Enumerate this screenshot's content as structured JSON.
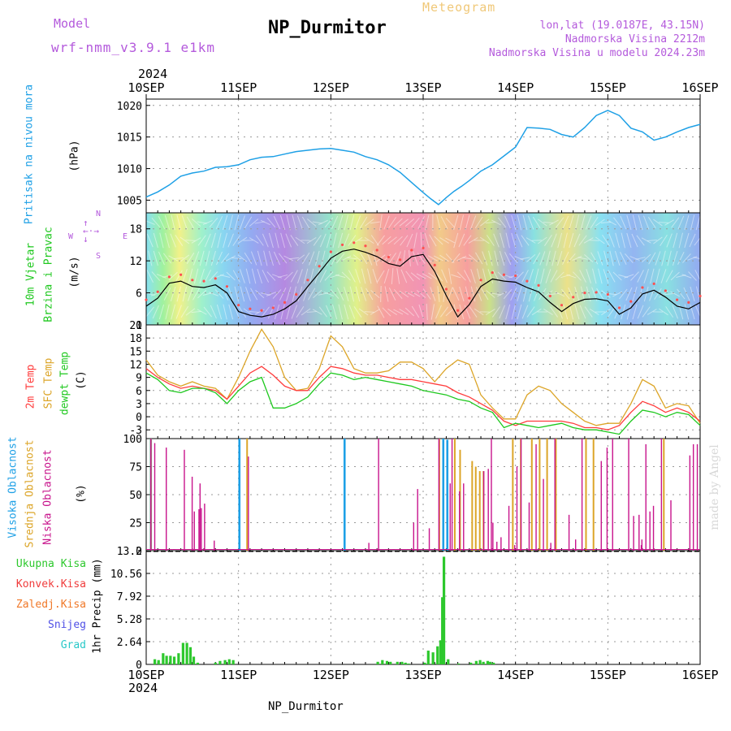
{
  "header": {
    "model_label": "Model",
    "model_name": "wrf-nmm_v3.9.1 e1km",
    "title": "NP_Durmitor",
    "product": "Meteogram",
    "lonlat": "lon,lat (19.0187E, 43.15N)",
    "altitude": "Nadmorska Visina 2212m",
    "model_altitude": "Nadmorska Visina u modelu 2024.23m",
    "year_top": "2024",
    "year_bottom": "2024",
    "footer_station": "NP_Durmitor",
    "credit": "made by Angel"
  },
  "colors": {
    "pressure": "#1ea0e6",
    "temp2m": "#ff3c3c",
    "sfc_temp": "#dca528",
    "dewpoint": "#1ec81e",
    "low_cloud": "#c8148c",
    "mid_cloud": "#dca528",
    "high_cloud": "#1ea0e6",
    "precip": "#2dc82d",
    "title_purple": "#b45adc",
    "product_orange": "#f0c878"
  },
  "days": [
    "10SEP",
    "11SEP",
    "12SEP",
    "13SEP",
    "14SEP",
    "15SEP",
    "16SEP"
  ],
  "panels": {
    "pressure": {
      "label_main": "Pritisak na nivou mora",
      "unit": "(hPa)"
    },
    "wind": {
      "label_a": "10m Vjetar",
      "label_b": "Brzina i Pravac",
      "unit": "(m/s)",
      "compass": {
        "n": "N",
        "s": "S",
        "w": "W",
        "e": "E"
      }
    },
    "temp": {
      "label_a": "2m Temp",
      "label_b": "SFC Temp",
      "label_c": "dewpt Temp",
      "unit": "(C)"
    },
    "cloud": {
      "label_a": "Visoka Oblacnost",
      "label_b": "Srednja Oblacnost",
      "label_c": "Niska Oblacnost",
      "unit": "(%)"
    },
    "precip": {
      "label_axis": "1hr Precip (mm)",
      "legend": [
        "Ukupna Kisa",
        "Konvek.Kisa",
        "Zaledj.Kisa",
        "Snijeg",
        "Grad"
      ],
      "legend_colors": [
        "#2dc82d",
        "#f03c3c",
        "#f07828",
        "#5050e6",
        "#28c8c8"
      ]
    }
  },
  "chart_data": [
    {
      "type": "line",
      "id": "pressure",
      "ylabel": "(hPa)",
      "ylim": [
        1003,
        1021
      ],
      "yticks": [
        1005,
        1010,
        1015,
        1020
      ],
      "x": [
        0,
        3,
        6,
        9,
        12,
        15,
        18,
        21,
        24,
        27,
        30,
        33,
        36,
        39,
        42,
        45,
        48,
        51,
        54,
        57,
        60,
        63,
        66,
        69,
        72,
        74,
        76,
        78,
        80,
        82,
        84,
        87,
        90,
        93,
        96,
        99,
        102,
        105,
        108,
        111,
        114,
        117,
        120,
        123,
        126,
        129,
        132,
        135,
        138,
        141,
        144
      ],
      "series": [
        {
          "values": [
            1005.5,
            1006.3,
            1007.4,
            1008.8,
            1009.3,
            1009.6,
            1010.2,
            1010.3,
            1010.6,
            1011.4,
            1011.8,
            1011.9,
            1012.3,
            1012.7,
            1012.9,
            1013.1,
            1013.2,
            1012.9,
            1012.6,
            1011.9,
            1011.4,
            1010.6,
            1009.4,
            1007.8,
            1006.2,
            1005.2,
            1004.3,
            1005.4,
            1006.4,
            1007.2,
            1008.1,
            1009.6,
            1010.6,
            1012.0,
            1013.4,
            1016.5,
            1016.4,
            1016.2,
            1015.4,
            1015.0,
            1016.5,
            1018.4,
            1019.2,
            1018.4,
            1016.4,
            1015.8,
            1014.5,
            1015.0,
            1015.8,
            1016.5,
            1017.0
          ]
        }
      ]
    },
    {
      "type": "line",
      "id": "wind_speed",
      "ylabel": "(m/s)",
      "ylim": [
        0,
        21
      ],
      "yticks": [
        0,
        6,
        12,
        18
      ],
      "x": [
        0,
        3,
        6,
        9,
        12,
        15,
        18,
        21,
        24,
        27,
        30,
        33,
        36,
        39,
        42,
        45,
        48,
        51,
        54,
        57,
        60,
        63,
        66,
        69,
        72,
        75,
        78,
        81,
        84,
        87,
        90,
        93,
        96,
        99,
        102,
        105,
        108,
        111,
        114,
        117,
        120,
        123,
        126,
        129,
        132,
        135,
        138,
        141,
        144
      ],
      "series": [
        {
          "values": [
            3.5,
            5.0,
            7.8,
            8.2,
            7.2,
            7.0,
            7.5,
            6.0,
            2.5,
            1.8,
            1.5,
            2.0,
            3.0,
            4.5,
            7.2,
            9.8,
            12.5,
            13.8,
            14.2,
            13.6,
            12.8,
            11.5,
            11.0,
            12.8,
            13.2,
            10.0,
            5.5,
            1.5,
            3.8,
            7.2,
            8.6,
            8.2,
            8.0,
            7.0,
            6.2,
            4.2,
            2.5,
            4.0,
            4.8,
            4.9,
            4.5,
            2.0,
            3.2,
            5.8,
            6.5,
            5.2,
            3.5,
            3.0,
            4.2
          ]
        }
      ]
    },
    {
      "type": "line",
      "id": "temperature",
      "ylabel": "(C)",
      "ylim": [
        -5,
        21
      ],
      "yticks": [
        -3,
        0,
        3,
        6,
        9,
        12,
        15,
        18,
        21
      ],
      "x": [
        0,
        3,
        6,
        9,
        12,
        15,
        18,
        21,
        24,
        27,
        30,
        33,
        36,
        39,
        42,
        45,
        48,
        51,
        54,
        57,
        60,
        63,
        66,
        69,
        72,
        75,
        78,
        81,
        84,
        87,
        90,
        93,
        96,
        99,
        102,
        105,
        108,
        111,
        114,
        117,
        120,
        123,
        126,
        129,
        132,
        135,
        138,
        141,
        144
      ],
      "series": [
        {
          "name": "2m Temp",
          "values": [
            11.0,
            9.0,
            7.5,
            6.5,
            7.0,
            6.5,
            6.0,
            4.0,
            7.0,
            10.0,
            11.5,
            9.5,
            7.0,
            6.0,
            6.0,
            9.0,
            11.5,
            11.0,
            10.0,
            9.5,
            9.5,
            9.0,
            8.5,
            8.5,
            8.0,
            7.5,
            7.0,
            5.5,
            4.5,
            3.0,
            1.5,
            -1.0,
            -2.0,
            -1.0,
            -1.0,
            -1.0,
            -1.0,
            -1.5,
            -2.5,
            -2.5,
            -3.0,
            -2.0,
            1.0,
            3.5,
            2.5,
            1.0,
            2.0,
            1.0,
            -1.0
          ]
        },
        {
          "name": "SFC Temp",
          "values": [
            13.0,
            9.5,
            8.0,
            7.0,
            8.0,
            7.0,
            6.5,
            4.0,
            9.0,
            15.0,
            20.0,
            16.0,
            9.0,
            6.0,
            6.5,
            11.0,
            18.5,
            16.0,
            11.0,
            10.0,
            10.0,
            10.5,
            12.5,
            12.5,
            11.0,
            8.0,
            11.0,
            13.0,
            12.0,
            5.0,
            2.0,
            -0.5,
            -0.5,
            5.0,
            7.0,
            6.0,
            3.0,
            1.0,
            -1.0,
            -2.0,
            -1.5,
            -1.5,
            3.0,
            8.5,
            7.0,
            2.0,
            3.0,
            2.5,
            -1.5
          ]
        },
        {
          "name": "dewpt Temp",
          "values": [
            10.0,
            8.5,
            6.0,
            5.5,
            6.5,
            6.5,
            5.5,
            3.0,
            6.0,
            8.0,
            9.0,
            2.0,
            2.0,
            3.0,
            4.5,
            7.5,
            10.0,
            9.5,
            8.5,
            9.0,
            8.5,
            8.0,
            7.5,
            7.0,
            6.0,
            5.5,
            5.0,
            4.0,
            3.5,
            2.0,
            1.0,
            -2.5,
            -1.5,
            -2.0,
            -2.5,
            -2.0,
            -1.5,
            -2.5,
            -3.0,
            -3.0,
            -3.5,
            -4.0,
            -1.0,
            1.5,
            1.0,
            0.0,
            1.0,
            0.5,
            -2.0
          ]
        }
      ]
    },
    {
      "type": "bar",
      "id": "cloud",
      "ylabel": "(%)",
      "ylim": [
        0,
        100
      ],
      "yticks": [
        0,
        25,
        50,
        75,
        100
      ],
      "series": [
        {
          "name": "Visoka Oblacnost",
          "segments": [
            [
              1,
              22,
              100
            ],
            [
              24,
              23,
              100
            ],
            [
              51,
              57,
              100
            ],
            [
              77,
              23,
              100
            ],
            [
              78,
              28,
              99
            ]
          ]
        },
        {
          "name": "Srednja Oblacnost",
          "segments": [
            [
              1,
              22,
              100
            ],
            [
              26,
              23,
              100
            ],
            [
              76,
              20,
              100
            ],
            [
              80,
              22,
              100
            ],
            [
              81,
              60,
              90
            ],
            [
              84,
              74,
              80
            ],
            [
              85,
              67,
              75
            ],
            [
              86,
              72,
              71
            ],
            [
              87,
              68,
              71
            ],
            [
              95,
              30,
              100
            ],
            [
              97,
              38,
              100
            ],
            [
              100,
              25,
              100
            ],
            [
              102,
              28,
              100
            ],
            [
              104,
              22,
              100
            ],
            [
              106,
              50,
              100
            ],
            [
              114,
              33,
              100
            ],
            [
              116,
              28,
              100
            ],
            [
              134,
              56,
              100
            ]
          ]
        },
        {
          "name": "Niska Oblacnost",
          "segments": [
            [
              1,
              21,
              100
            ],
            [
              2,
              22,
              96
            ],
            [
              5,
              22,
              92
            ],
            [
              9,
              92,
              90
            ],
            [
              11,
              95,
              66
            ],
            [
              12,
              51,
              35
            ],
            [
              13,
              72,
              37
            ],
            [
              13,
              100,
              60
            ],
            [
              14,
              33,
              38
            ],
            [
              15,
              18,
              42
            ],
            [
              17,
              69,
              9
            ],
            [
              26,
              57,
              84
            ],
            [
              57,
              88,
              7
            ],
            [
              60,
              41,
              100
            ],
            [
              69,
              53,
              25
            ],
            [
              70,
              56,
              55
            ],
            [
              73,
              59,
              20
            ],
            [
              76,
              9,
              100
            ],
            [
              79,
              2,
              60
            ],
            [
              79,
              51,
              100
            ],
            [
              81,
              45,
              53
            ],
            [
              82,
              51,
              60
            ],
            [
              87,
              76,
              71
            ],
            [
              88,
              93,
              73
            ],
            [
              89,
              73,
              100
            ],
            [
              90,
              13,
              25
            ],
            [
              91,
              16,
              8
            ],
            [
              92,
              24,
              12
            ],
            [
              94,
              29,
              40
            ],
            [
              95,
              80,
              5
            ],
            [
              96,
              38,
              75
            ],
            [
              97,
              45,
              100
            ],
            [
              99,
              55,
              43
            ],
            [
              101,
              36,
              95
            ],
            [
              103,
              26,
              64
            ],
            [
              105,
              18,
              7
            ],
            [
              106,
              25,
              100
            ],
            [
              109,
              92,
              32
            ],
            [
              111,
              63,
              10
            ],
            [
              113,
              30,
              100
            ],
            [
              118,
              30,
              80
            ],
            [
              119,
              81,
              92
            ],
            [
              121,
              25,
              100
            ],
            [
              125,
              43,
              100
            ],
            [
              126,
              71,
              31
            ],
            [
              128,
              12,
              32
            ],
            [
              128,
              70,
              5
            ],
            [
              128,
              86,
              10
            ],
            [
              129,
              90,
              95
            ],
            [
              130,
              95,
              35
            ],
            [
              131,
              87,
              40
            ],
            [
              133,
              94,
              100
            ],
            [
              136,
              40,
              45
            ],
            [
              141,
              33,
              85
            ],
            [
              142,
              24,
              95
            ],
            [
              143,
              27,
              95
            ]
          ]
        }
      ]
    },
    {
      "type": "bar",
      "id": "precip",
      "ylabel": "1hr Precip (mm)",
      "ylim": [
        0,
        13.2
      ],
      "yticks": [
        0,
        2.64,
        5.28,
        7.92,
        10.56,
        13.2
      ],
      "series": [
        {
          "name": "Ukupna Kisa",
          "segments": [
            [
              2,
              24,
              0.6
            ],
            [
              3,
              22,
              0.5
            ],
            [
              4,
              40,
              1.3
            ],
            [
              5,
              30,
              1.0
            ],
            [
              6,
              30,
              1.0
            ],
            [
              7,
              30,
              0.9
            ],
            [
              8,
              42,
              1.3
            ],
            [
              9,
              58,
              2.5
            ],
            [
              10,
              58,
              2.5
            ],
            [
              11,
              50,
              2.0
            ],
            [
              12,
              36,
              0.9
            ],
            [
              13,
              40,
              0.2
            ],
            [
              18,
              0,
              0.2
            ],
            [
              19,
              20,
              0.4
            ],
            [
              20,
              50,
              0.5
            ],
            [
              21,
              60,
              0.6
            ],
            [
              22,
              62,
              0.5
            ],
            [
              60,
              20,
              0.3
            ],
            [
              61,
              40,
              0.5
            ],
            [
              62,
              60,
              0.4
            ],
            [
              63,
              50,
              0.3
            ],
            [
              65,
              30,
              0.3
            ],
            [
              66,
              50,
              0.3
            ],
            [
              67,
              40,
              0.2
            ],
            [
              68,
              20,
              0.1
            ],
            [
              72,
              40,
              0.2
            ],
            [
              73,
              33,
              1.6
            ],
            [
              74,
              56,
              1.4
            ],
            [
              75,
              74,
              2.1
            ],
            [
              76,
              52,
              2.8
            ],
            [
              77,
              0,
              7.8
            ],
            [
              77,
              40,
              12.5
            ],
            [
              78,
              50,
              0.6
            ],
            [
              81,
              20,
              0.1
            ],
            [
              84,
              40,
              0.2
            ],
            [
              85,
              80,
              0.4
            ],
            [
              86,
              80,
              0.5
            ],
            [
              87,
              66,
              0.3
            ],
            [
              88,
              77,
              0.4
            ],
            [
              89,
              45,
              0.3
            ],
            [
              90,
              30,
              0.2
            ]
          ]
        }
      ]
    }
  ]
}
